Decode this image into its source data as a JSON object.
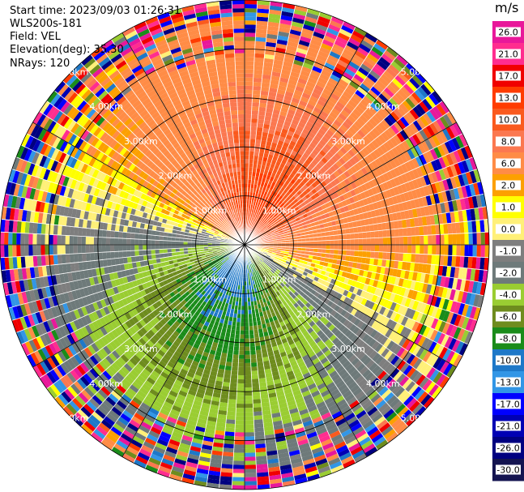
{
  "info": {
    "start_time": "Start time: 2023/09/03 01:26:31",
    "instrument": "WLS200s-181",
    "field": "Field: VEL",
    "elevation": "Elevation(deg): 35.30",
    "nrays": "NRays: 120"
  },
  "colorbar": {
    "unit": "m/s",
    "ticks": [
      "26.0",
      "21.0",
      "17.0",
      "13.0",
      "10.0",
      "8.0",
      "6.0",
      "2.0",
      "1.0",
      "0.0",
      "-1.0",
      "-2.0",
      "-4.0",
      "-6.0",
      "-8.0",
      "-10.0",
      "-13.0",
      "-17.0",
      "-21.0",
      "-26.0",
      "-30.0"
    ],
    "colors": [
      "#e8189a",
      "#ff2d8f",
      "#f00000",
      "#ff3c00",
      "#fa5a1e",
      "#fb7850",
      "#ff8c46",
      "#fca000",
      "#ffff00",
      "#fff078",
      "#7e7e7e",
      "#6e7a7a",
      "#9acd32",
      "#6e8c1e",
      "#1a8c1a",
      "#1e78c8",
      "#3296e6",
      "#0000ff",
      "#0000b4",
      "#000080",
      "#141450"
    ]
  },
  "chart_data": {
    "type": "ppi",
    "field": "VEL",
    "units": "m/s",
    "nrays": 120,
    "elevation_deg": 35.3,
    "range_rings_km": [
      1.0,
      2.0,
      3.0,
      4.0,
      5.0
    ],
    "range_labels": [
      "1.00km",
      "2.00km",
      "3.00km",
      "4.00km",
      "5.00km"
    ],
    "max_range_km": 5.0,
    "radial_lines_deg": [
      0,
      30,
      60,
      90,
      120,
      150,
      180,
      210,
      240,
      270,
      300,
      330
    ],
    "velocity_pattern": {
      "dominant_positive_azimuth_deg": 20,
      "max_positive_ms": 13.0,
      "dominant_negative_azimuth_deg": 200,
      "max_negative_ms": -13.0,
      "noise_beyond_km": 4.6
    }
  }
}
